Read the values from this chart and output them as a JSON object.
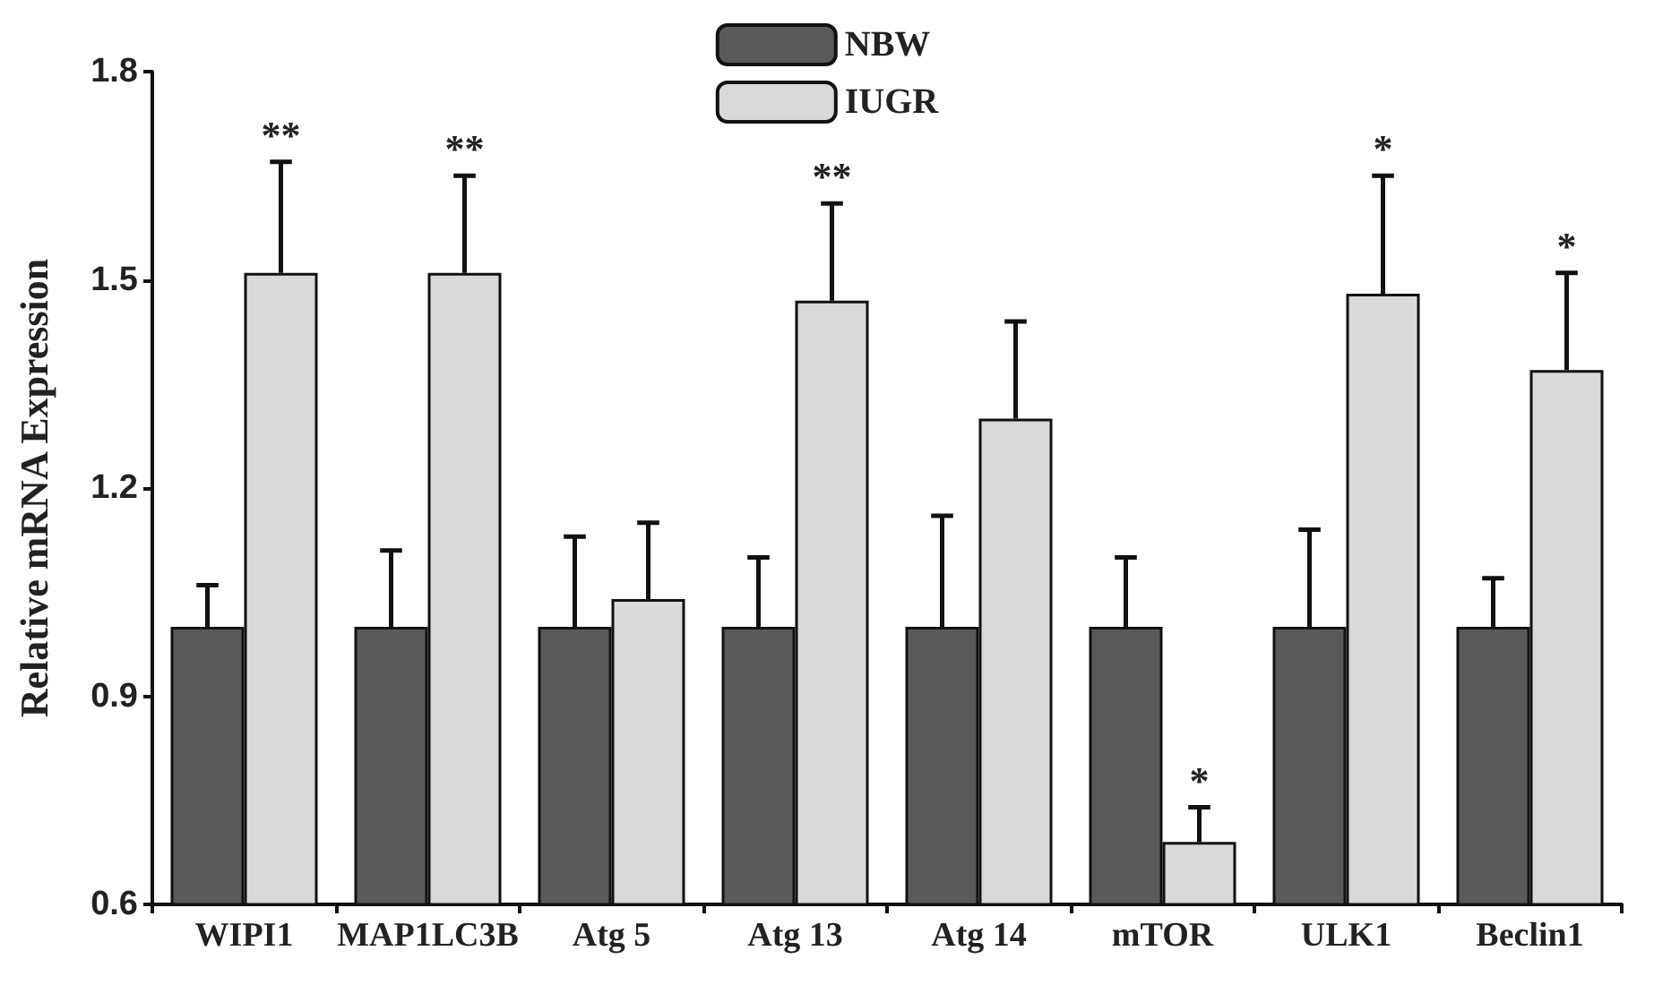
{
  "chart_data": {
    "type": "bar",
    "ylabel": "Relative mRNA Expression",
    "categories": [
      "WIPI1",
      "MAP1LC3B",
      "Atg 5",
      "Atg 13",
      "Atg 14",
      "mTOR",
      "ULK1",
      "Beclin1"
    ],
    "series": [
      {
        "name": "NBW",
        "color": "#5a5a5a",
        "values": [
          1.0,
          1.0,
          1.0,
          1.0,
          1.0,
          1.0,
          1.0,
          1.0
        ],
        "errors": [
          [
            1.0,
            1.06
          ],
          [
            1.0,
            1.11
          ],
          [
            1.0,
            1.13
          ],
          [
            1.0,
            1.1
          ],
          [
            1.0,
            1.16
          ],
          [
            1.0,
            1.1
          ],
          [
            1.0,
            1.14
          ],
          [
            1.0,
            1.07
          ]
        ]
      },
      {
        "name": "IUGR",
        "color": "#d9d9d9",
        "values": [
          1.51,
          1.51,
          1.04,
          1.47,
          1.3,
          0.69,
          1.48,
          1.37
        ],
        "value_labels": [
          "**",
          "**",
          null,
          "**",
          null,
          "*",
          "*",
          "*"
        ],
        "errors": [
          [
            1.51,
            1.67
          ],
          [
            1.51,
            1.65
          ],
          [
            1.04,
            1.15
          ],
          [
            1.47,
            1.61
          ],
          [
            1.3,
            1.44
          ],
          [
            0.69,
            0.74
          ],
          [
            1.48,
            1.65
          ],
          [
            1.37,
            1.51
          ]
        ]
      }
    ],
    "ylim": [
      0.6,
      1.8
    ],
    "yticks": [
      0.6,
      0.9,
      1.2,
      1.5,
      1.8
    ],
    "grid": false,
    "legend": "top"
  }
}
